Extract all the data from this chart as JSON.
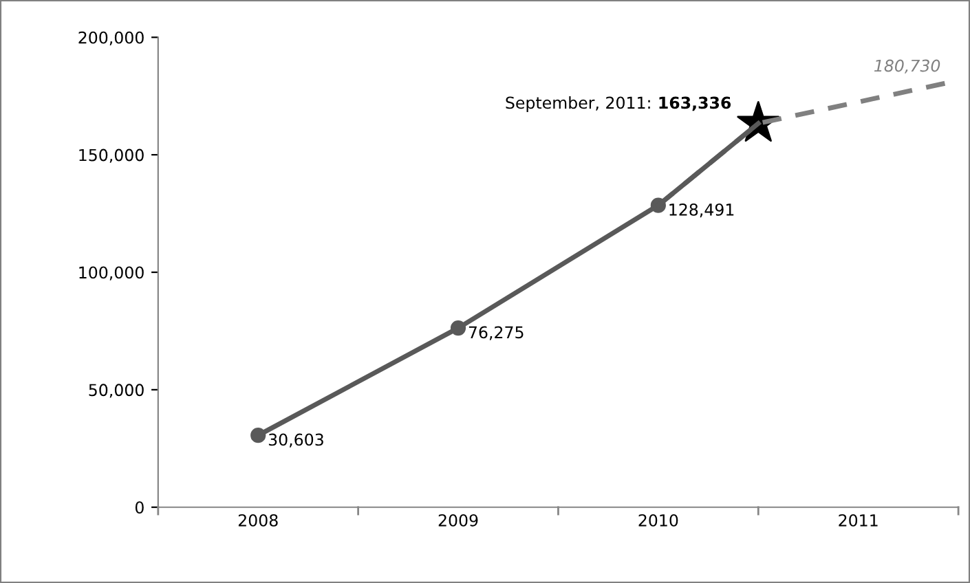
{
  "chart_data": {
    "type": "line",
    "xlim": [
      2007.5,
      2011.5
    ],
    "xticks": [
      {
        "value": 2007.5,
        "label": null
      },
      2008,
      {
        "value": 2008.5,
        "label": null
      },
      2009,
      {
        "value": 2009.5,
        "label": null
      },
      2010,
      {
        "value": 2010.5,
        "label": null
      },
      2011,
      {
        "value": 2011.5,
        "label": null
      }
    ],
    "ylim": [
      0,
      200000
    ],
    "yticks": [
      0,
      {
        "value": 50000,
        "label": "50,000"
      },
      {
        "value": 100000,
        "label": "100,000"
      },
      {
        "value": 150000,
        "label": "150,000"
      },
      {
        "value": 200000,
        "label": "200,000"
      }
    ],
    "series": [
      {
        "color": "#808080",
        "line_style": "dashed",
        "marker": "none",
        "x": [
          2010,
          2010.5,
          2011.45
        ],
        "values": [
          128491,
          163336,
          180730
        ],
        "value_labels": [
          null,
          null,
          "180,730"
        ]
      },
      {
        "color": "#595959",
        "line_style": "solid",
        "marker": "circle",
        "x": [
          2008,
          2009,
          2010
        ],
        "values": [
          30603,
          76275,
          128491
        ],
        "value_labels": [
          "30,603",
          "76,275",
          "128,491"
        ]
      },
      {
        "color": "#595959",
        "line_style": "solid",
        "marker": "none",
        "x": [
          2010,
          2010.5
        ],
        "values": [
          128491,
          163336
        ]
      },
      {
        "color": "#000000",
        "type": "scatter",
        "marker": "star",
        "x": [
          2010.5
        ],
        "values": [
          163336
        ],
        "value_labels": [
          "163,336"
        ]
      }
    ],
    "annotations": [
      "September, 2011:"
    ],
    "grid": false,
    "legend": false
  }
}
